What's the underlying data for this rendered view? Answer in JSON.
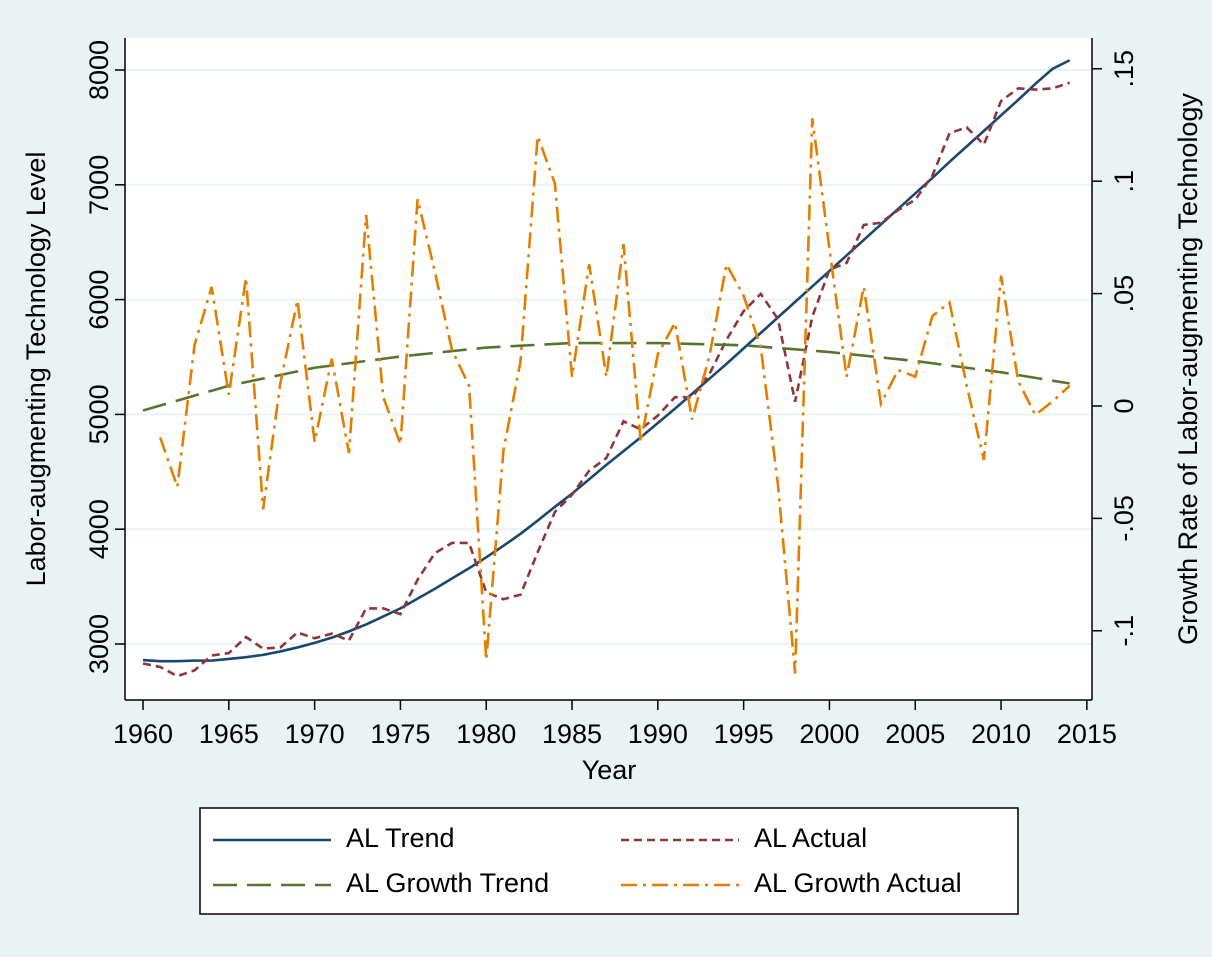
{
  "chart_data": {
    "type": "line",
    "xlabel": "Year",
    "ylabel": "Labor-augmenting Technology Level",
    "y2label": "Growth Rate of Labor-augmenting Technology",
    "x": [
      1960,
      1961,
      1962,
      1963,
      1964,
      1965,
      1966,
      1967,
      1968,
      1969,
      1970,
      1971,
      1972,
      1973,
      1974,
      1975,
      1976,
      1977,
      1978,
      1979,
      1980,
      1981,
      1982,
      1983,
      1984,
      1985,
      1986,
      1987,
      1988,
      1989,
      1990,
      1991,
      1992,
      1993,
      1994,
      1995,
      1996,
      1997,
      1998,
      1999,
      2000,
      2001,
      2002,
      2003,
      2004,
      2005,
      2006,
      2007,
      2008,
      2009,
      2010,
      2011,
      2012,
      2013,
      2014
    ],
    "series": [
      {
        "name": "AL Trend",
        "color": "#1a476f",
        "dash": "solid",
        "axis": "y",
        "values": [
          2860,
          2850,
          2850,
          2855,
          2855,
          2870,
          2885,
          2905,
          2935,
          2970,
          3010,
          3055,
          3110,
          3170,
          3240,
          3310,
          3395,
          3480,
          3570,
          3660,
          3755,
          3855,
          3960,
          4075,
          4195,
          4310,
          4435,
          4560,
          4680,
          4800,
          4925,
          5050,
          5180,
          5310,
          5440,
          5575,
          5710,
          5845,
          5980,
          6115,
          6250,
          6385,
          6520,
          6655,
          6790,
          6925,
          7060,
          7200,
          7335,
          7470,
          7605,
          7740,
          7880,
          8010,
          8085
        ]
      },
      {
        "name": "AL Actual",
        "color": "#90353b",
        "dash": "short",
        "axis": "y",
        "values": [
          2830,
          2800,
          2720,
          2770,
          2900,
          2920,
          3060,
          2960,
          2970,
          3100,
          3050,
          3090,
          3030,
          3310,
          3310,
          3260,
          3560,
          3790,
          3880,
          3880,
          3450,
          3390,
          3430,
          3800,
          4150,
          4300,
          4510,
          4620,
          4940,
          4870,
          4990,
          5150,
          5150,
          5350,
          5650,
          5900,
          6050,
          5830,
          5110,
          5850,
          6260,
          6320,
          6650,
          6670,
          6780,
          6870,
          7080,
          7450,
          7500,
          7350,
          7730,
          7840,
          7830,
          7840,
          7890
        ]
      },
      {
        "name": "AL Growth Trend",
        "color": "#55752f",
        "dash": "long",
        "axis": "y2",
        "values": [
          -0.002,
          0.0002,
          0.0024,
          0.0046,
          0.0068,
          0.009,
          0.0106,
          0.0122,
          0.0138,
          0.0154,
          0.017,
          0.018,
          0.019,
          0.02,
          0.021,
          0.022,
          0.0228,
          0.0236,
          0.0244,
          0.0252,
          0.026,
          0.0264,
          0.0268,
          0.0272,
          0.0276,
          0.028,
          0.028,
          0.028,
          0.028,
          0.028,
          0.028,
          0.0278,
          0.0276,
          0.0274,
          0.0272,
          0.027,
          0.0264,
          0.0258,
          0.0252,
          0.0246,
          0.024,
          0.0232,
          0.0224,
          0.0216,
          0.0208,
          0.02,
          0.019,
          0.018,
          0.017,
          0.016,
          0.015,
          0.01375,
          0.0125,
          0.01125,
          0.01
        ]
      },
      {
        "name": "AL Growth Actual",
        "color": "#e37e00",
        "dash": "dashdot",
        "axis": "y2",
        "values": [
          null,
          -0.014,
          -0.036,
          0.027,
          0.053,
          0.005,
          0.057,
          -0.046,
          0.01,
          0.047,
          -0.016,
          0.021,
          -0.021,
          0.085,
          0.004,
          -0.017,
          0.092,
          0.06,
          0.025,
          0.009,
          -0.113,
          -0.02,
          0.02,
          0.12,
          0.099,
          0.013,
          0.063,
          0.013,
          0.072,
          -0.016,
          0.023,
          0.037,
          -0.006,
          0.022,
          0.063,
          0.049,
          0.026,
          -0.035,
          -0.119,
          0.128,
          0.07,
          0.013,
          0.053,
          0.001,
          0.016,
          0.013,
          0.04,
          0.046,
          0.009,
          -0.024,
          0.058,
          0.011,
          -0.004,
          0.002,
          0.009
        ]
      }
    ],
    "xlim": [
      1958.95,
      2015.3
    ],
    "xticks": [
      1960,
      1965,
      1970,
      1975,
      1980,
      1985,
      1990,
      1995,
      2000,
      2005,
      2010,
      2015
    ],
    "ylim": [
      2512,
      8279
    ],
    "yticks": [
      3000,
      4000,
      5000,
      6000,
      7000,
      8000
    ],
    "y2lim": [
      -0.1308,
      0.1637
    ],
    "y2ticks": [
      {
        "value": -0.1,
        "label": "-.1"
      },
      {
        "value": -0.05,
        "label": "-.05"
      },
      0,
      {
        "value": 0.05,
        "label": ".05"
      },
      {
        "value": 0.1,
        "label": ".1"
      },
      {
        "value": 0.15,
        "label": ".15"
      }
    ],
    "grid": true,
    "legend": "bottom"
  }
}
